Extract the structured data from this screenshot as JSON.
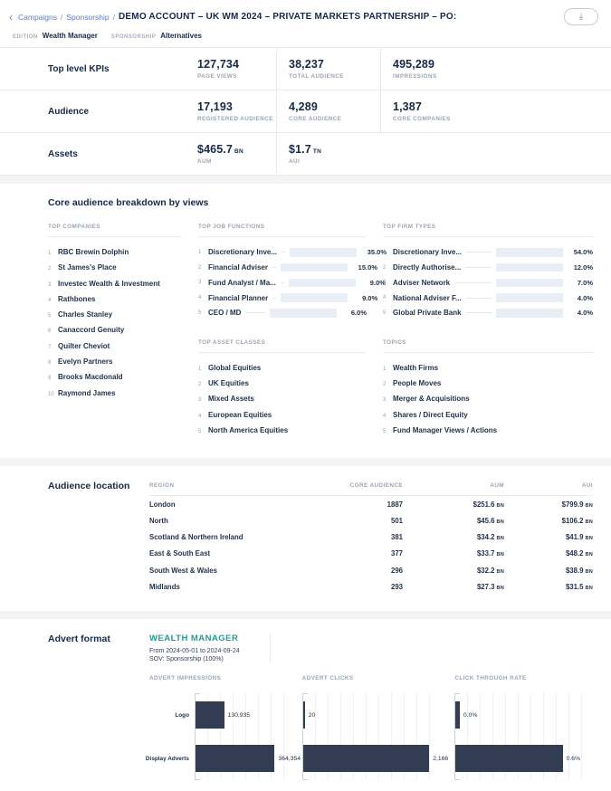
{
  "header": {
    "breadcrumb": {
      "back_icon": "‹",
      "links": [
        "Campaigns",
        "Sponsorship"
      ],
      "separator": "/"
    },
    "title": "DEMO ACCOUNT – UK WM 2024 – PRIVATE MARKETS PARTNERSHIP – PO:",
    "download_icon": "⤓",
    "meta": [
      {
        "label": "EDITION",
        "value": "Wealth Manager"
      },
      {
        "label": "SPONSORSHIP",
        "value": "Alternatives"
      }
    ]
  },
  "kpi_rows": [
    {
      "label": "Top level KPIs",
      "cells": [
        {
          "value": "127,734",
          "caption": "PAGE VIEWS"
        },
        {
          "value": "38,237",
          "caption": "TOTAL AUDIENCE"
        },
        {
          "value": "495,289",
          "caption": "IMPRESSIONS"
        }
      ]
    },
    {
      "label": "Audience",
      "cells": [
        {
          "value": "17,193",
          "caption": "REGISTERED AUDIENCE"
        },
        {
          "value": "4,289",
          "caption": "CORE AUDIENCE"
        },
        {
          "value": "1,387",
          "caption": "CORE COMPANIES"
        }
      ]
    },
    {
      "label": "Assets",
      "cells": [
        {
          "value": "$465.7",
          "unit": "BN",
          "caption": "AUM"
        },
        {
          "value": "$1.7",
          "unit": "TN",
          "caption": "AUI"
        }
      ]
    }
  ],
  "breakdown": {
    "title": "Core audience breakdown by views",
    "top_companies": {
      "heading": "TOP COMPANIES",
      "items": [
        "RBC Brewin Dolphin",
        "St James's Place",
        "Investec Wealth & Investment",
        "Rathbones",
        "Charles Stanley",
        "Canaccord Genuity",
        "Quilter Cheviot",
        "Evelyn Partners",
        "Brooks Macdonald",
        "Raymond James"
      ]
    },
    "top_job_functions": {
      "heading": "TOP JOB FUNCTIONS",
      "bars": [
        {
          "label": "Discretionary Inve...",
          "pct": 35,
          "display": "35.0%"
        },
        {
          "label": "Financial Adviser",
          "pct": 15,
          "display": "15.0%"
        },
        {
          "label": "Fund Analyst / Ma...",
          "pct": 9,
          "display": "9.0%"
        },
        {
          "label": "Financial Planner",
          "pct": 9,
          "display": "9.0%"
        },
        {
          "label": "CEO / MD",
          "pct": 6,
          "display": "6.0%"
        }
      ]
    },
    "top_firm_types": {
      "heading": "TOP FIRM TYPES",
      "bars": [
        {
          "label": "Discretionary Inve...",
          "pct": 54,
          "display": "54.0%"
        },
        {
          "label": "Directly Authorise...",
          "pct": 12,
          "display": "12.0%"
        },
        {
          "label": "Adviser Network",
          "pct": 7,
          "display": "7.0%"
        },
        {
          "label": "National Adviser F...",
          "pct": 4,
          "display": "4.0%"
        },
        {
          "label": "Global Private Bank",
          "pct": 4,
          "display": "4.0%"
        }
      ]
    },
    "top_asset_classes": {
      "heading": "TOP ASSET CLASSES",
      "items": [
        "Global Equities",
        "UK Equities",
        "Mixed Assets",
        "European Equities",
        "North America Equities"
      ]
    },
    "topics": {
      "heading": "TOPICS",
      "items": [
        "Wealth Firms",
        "People Moves",
        "Merger & Acquisitions",
        "Shares / Direct Equity",
        "Fund Manager Views / Actions"
      ]
    }
  },
  "audience_location": {
    "title": "Audience location",
    "columns": [
      "REGION",
      "CORE AUDIENCE",
      "AUM",
      "AUI"
    ],
    "rows": [
      {
        "region": "London",
        "core_audience": "1887",
        "aum_value": "$251.6",
        "aum_unit": "BN",
        "aui_value": "$799.9",
        "aui_unit": "BN"
      },
      {
        "region": "North",
        "core_audience": "501",
        "aum_value": "$45.6",
        "aum_unit": "BN",
        "aui_value": "$106.2",
        "aui_unit": "BN"
      },
      {
        "region": "Scotland & Northern Ireland",
        "core_audience": "381",
        "aum_value": "$34.2",
        "aum_unit": "BN",
        "aui_value": "$41.9",
        "aui_unit": "BN"
      },
      {
        "region": "East & South East",
        "core_audience": "377",
        "aum_value": "$33.7",
        "aum_unit": "BN",
        "aui_value": "$48.2",
        "aui_unit": "BN"
      },
      {
        "region": "South West & Wales",
        "core_audience": "296",
        "aum_value": "$32.2",
        "aum_unit": "BN",
        "aui_value": "$38.9",
        "aui_unit": "BN"
      },
      {
        "region": "Midlands",
        "core_audience": "293",
        "aum_value": "$27.3",
        "aum_unit": "BN",
        "aui_value": "$31.5",
        "aui_unit": "BN"
      }
    ]
  },
  "advert_format": {
    "title": "Advert format",
    "edition_heading": "WEALTH MANAGER",
    "date_range": "From 2024-05-01 to 2024-09-24",
    "sov": "SOV: Sponsorship (100%)",
    "categories": [
      "Logo",
      "Display Adverts"
    ],
    "charts": [
      {
        "heading": "ADVERT IMPRESSIONS",
        "bars": [
          {
            "category": "Logo",
            "value": 130935,
            "display": "130,935",
            "frac": 0.31
          },
          {
            "category": "Display Adverts",
            "value": 364354,
            "display": "364,354",
            "frac": 0.86
          }
        ]
      },
      {
        "heading": "ADVERT CLICKS",
        "bars": [
          {
            "category": "Logo",
            "value": 20,
            "display": "20",
            "frac": 0.012
          },
          {
            "category": "Display Adverts",
            "value": 2166,
            "display": "2,166",
            "frac": 0.92
          }
        ]
      },
      {
        "heading": "CLICK THROUGH RATE",
        "bars": [
          {
            "category": "Logo",
            "value": 0.0,
            "display": "0.0%",
            "frac": 0.03
          },
          {
            "category": "Display Adverts",
            "value": 0.6,
            "display": "0.6%",
            "frac": 0.78
          }
        ]
      }
    ]
  },
  "chart_data": [
    {
      "type": "bar",
      "title": "TOP JOB FUNCTIONS",
      "categories": [
        "Discretionary Inve...",
        "Financial Adviser",
        "Fund Analyst / Ma...",
        "Financial Planner",
        "CEO / MD"
      ],
      "values": [
        35.0,
        15.0,
        9.0,
        9.0,
        6.0
      ],
      "unit": "%"
    },
    {
      "type": "bar",
      "title": "TOP FIRM TYPES",
      "categories": [
        "Discretionary Inve...",
        "Directly Authorise...",
        "Adviser Network",
        "National Adviser F...",
        "Global Private Bank"
      ],
      "values": [
        54.0,
        12.0,
        7.0,
        4.0,
        4.0
      ],
      "unit": "%"
    },
    {
      "type": "bar",
      "title": "ADVERT IMPRESSIONS",
      "categories": [
        "Logo",
        "Display Adverts"
      ],
      "values": [
        130935,
        364354
      ]
    },
    {
      "type": "bar",
      "title": "ADVERT CLICKS",
      "categories": [
        "Logo",
        "Display Adverts"
      ],
      "values": [
        20,
        2166
      ]
    },
    {
      "type": "bar",
      "title": "CLICK THROUGH RATE",
      "categories": [
        "Logo",
        "Display Adverts"
      ],
      "values": [
        0.0,
        0.6
      ],
      "unit": "%"
    }
  ],
  "colors": {
    "accent_blue": "#5a7bd6",
    "teal": "#1f9e93",
    "navy": "#16294a",
    "bar_dark": "#323d53",
    "bar_mini": "#1d3a4e",
    "track": "#e9eef4"
  }
}
